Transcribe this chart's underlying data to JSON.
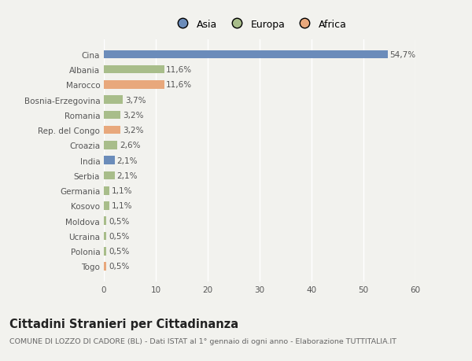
{
  "countries": [
    "Cina",
    "Albania",
    "Marocco",
    "Bosnia-Erzegovina",
    "Romania",
    "Rep. del Congo",
    "Croazia",
    "India",
    "Serbia",
    "Germania",
    "Kosovo",
    "Moldova",
    "Ucraina",
    "Polonia",
    "Togo"
  ],
  "values": [
    54.7,
    11.6,
    11.6,
    3.7,
    3.2,
    3.2,
    2.6,
    2.1,
    2.1,
    1.1,
    1.1,
    0.5,
    0.5,
    0.5,
    0.5
  ],
  "labels": [
    "54,7%",
    "11,6%",
    "11,6%",
    "3,7%",
    "3,2%",
    "3,2%",
    "2,6%",
    "2,1%",
    "2,1%",
    "1,1%",
    "1,1%",
    "0,5%",
    "0,5%",
    "0,5%",
    "0,5%"
  ],
  "bar_colors": [
    "#6b8cba",
    "#a8bd8a",
    "#e8a87c",
    "#a8bd8a",
    "#a8bd8a",
    "#e8a87c",
    "#a8bd8a",
    "#6b8cba",
    "#a8bd8a",
    "#a8bd8a",
    "#a8bd8a",
    "#a8bd8a",
    "#a8bd8a",
    "#a8bd8a",
    "#e8a87c"
  ],
  "xlim": [
    0,
    60
  ],
  "xticks": [
    0,
    10,
    20,
    30,
    40,
    50,
    60
  ],
  "title": "Cittadini Stranieri per Cittadinanza",
  "subtitle": "COMUNE DI LOZZO DI CADORE (BL) - Dati ISTAT al 1° gennaio di ogni anno - Elaborazione TUTTITALIA.IT",
  "legend_labels": [
    "Asia",
    "Europa",
    "Africa"
  ],
  "legend_colors": [
    "#6b8cba",
    "#a8bd8a",
    "#e8a87c"
  ],
  "background_color": "#f2f2ee",
  "grid_color": "#ffffff",
  "bar_height": 0.55,
  "label_fontsize": 7.5,
  "tick_fontsize": 7.5,
  "title_fontsize": 10.5,
  "subtitle_fontsize": 6.8
}
